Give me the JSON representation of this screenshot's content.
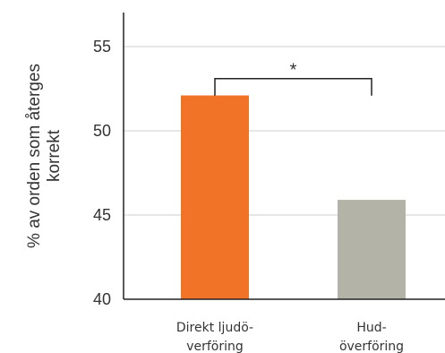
{
  "chart_data": {
    "type": "bar",
    "title": "",
    "xlabel": "",
    "ylabel_lines": [
      "% av orden som återges",
      "korrekt"
    ],
    "ylim": [
      40,
      56
    ],
    "yticks": [
      40,
      45,
      50,
      55
    ],
    "grid": true,
    "categories": [
      {
        "lines": [
          "Direkt ljudö-",
          "verföring"
        ]
      },
      {
        "lines": [
          "Hud-",
          "överföring"
        ]
      }
    ],
    "values": [
      52.1,
      45.9
    ],
    "colors": [
      "#f07327",
      "#b4b3a8"
    ],
    "significance": {
      "label": "*",
      "between": [
        0,
        1
      ],
      "level": 53.1
    }
  }
}
